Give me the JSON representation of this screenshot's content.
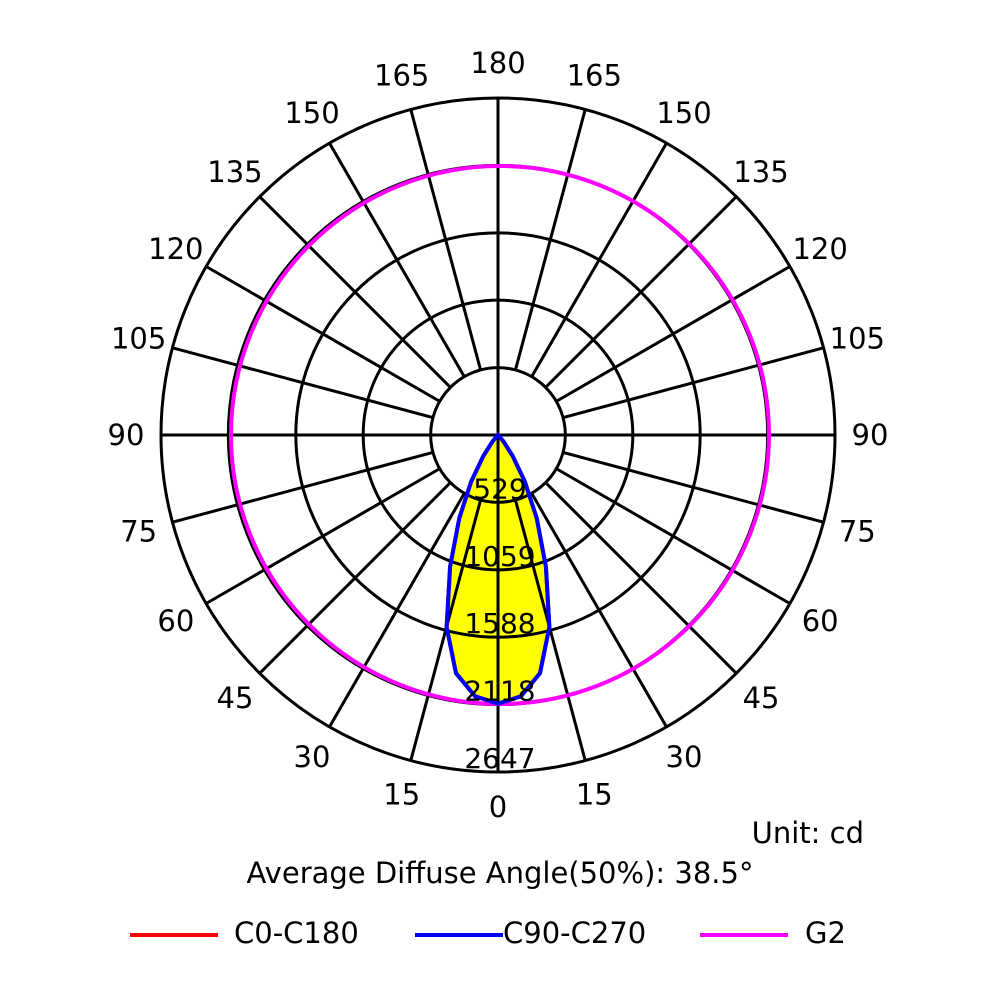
{
  "chart_data": {
    "type": "polar",
    "title": "",
    "unit_label": "Unit: cd",
    "summary": "Average Diffuse Angle(50%): 38.5°",
    "radial_ticks": [
      529,
      1059,
      1588,
      2118,
      2647
    ],
    "radial_max": 2647,
    "angle_labels_right": [
      "0",
      "15",
      "30",
      "45",
      "60",
      "75",
      "90",
      "105",
      "120",
      "135",
      "150",
      "165",
      "180"
    ],
    "angle_labels_left": [
      "15",
      "30",
      "45",
      "60",
      "75",
      "90",
      "105",
      "120",
      "135",
      "150",
      "165"
    ],
    "angles_deg": [
      0,
      5,
      10,
      15,
      20,
      25,
      30,
      35,
      40,
      45,
      50
    ],
    "series": [
      {
        "name": "C0-C180",
        "color": "#ff0000",
        "values": [
          2110,
          2060,
          1900,
          1560,
          1100,
          720,
          420,
          200,
          70,
          15,
          0
        ]
      },
      {
        "name": "C90-C270",
        "color": "#0000ff",
        "values": [
          2110,
          2060,
          1900,
          1560,
          1100,
          720,
          420,
          200,
          70,
          15,
          0
        ]
      },
      {
        "name": "G2",
        "color": "#ff00ff",
        "constant": 2105
      }
    ],
    "fill_color": "#ffff00",
    "legend_position": "bottom"
  }
}
